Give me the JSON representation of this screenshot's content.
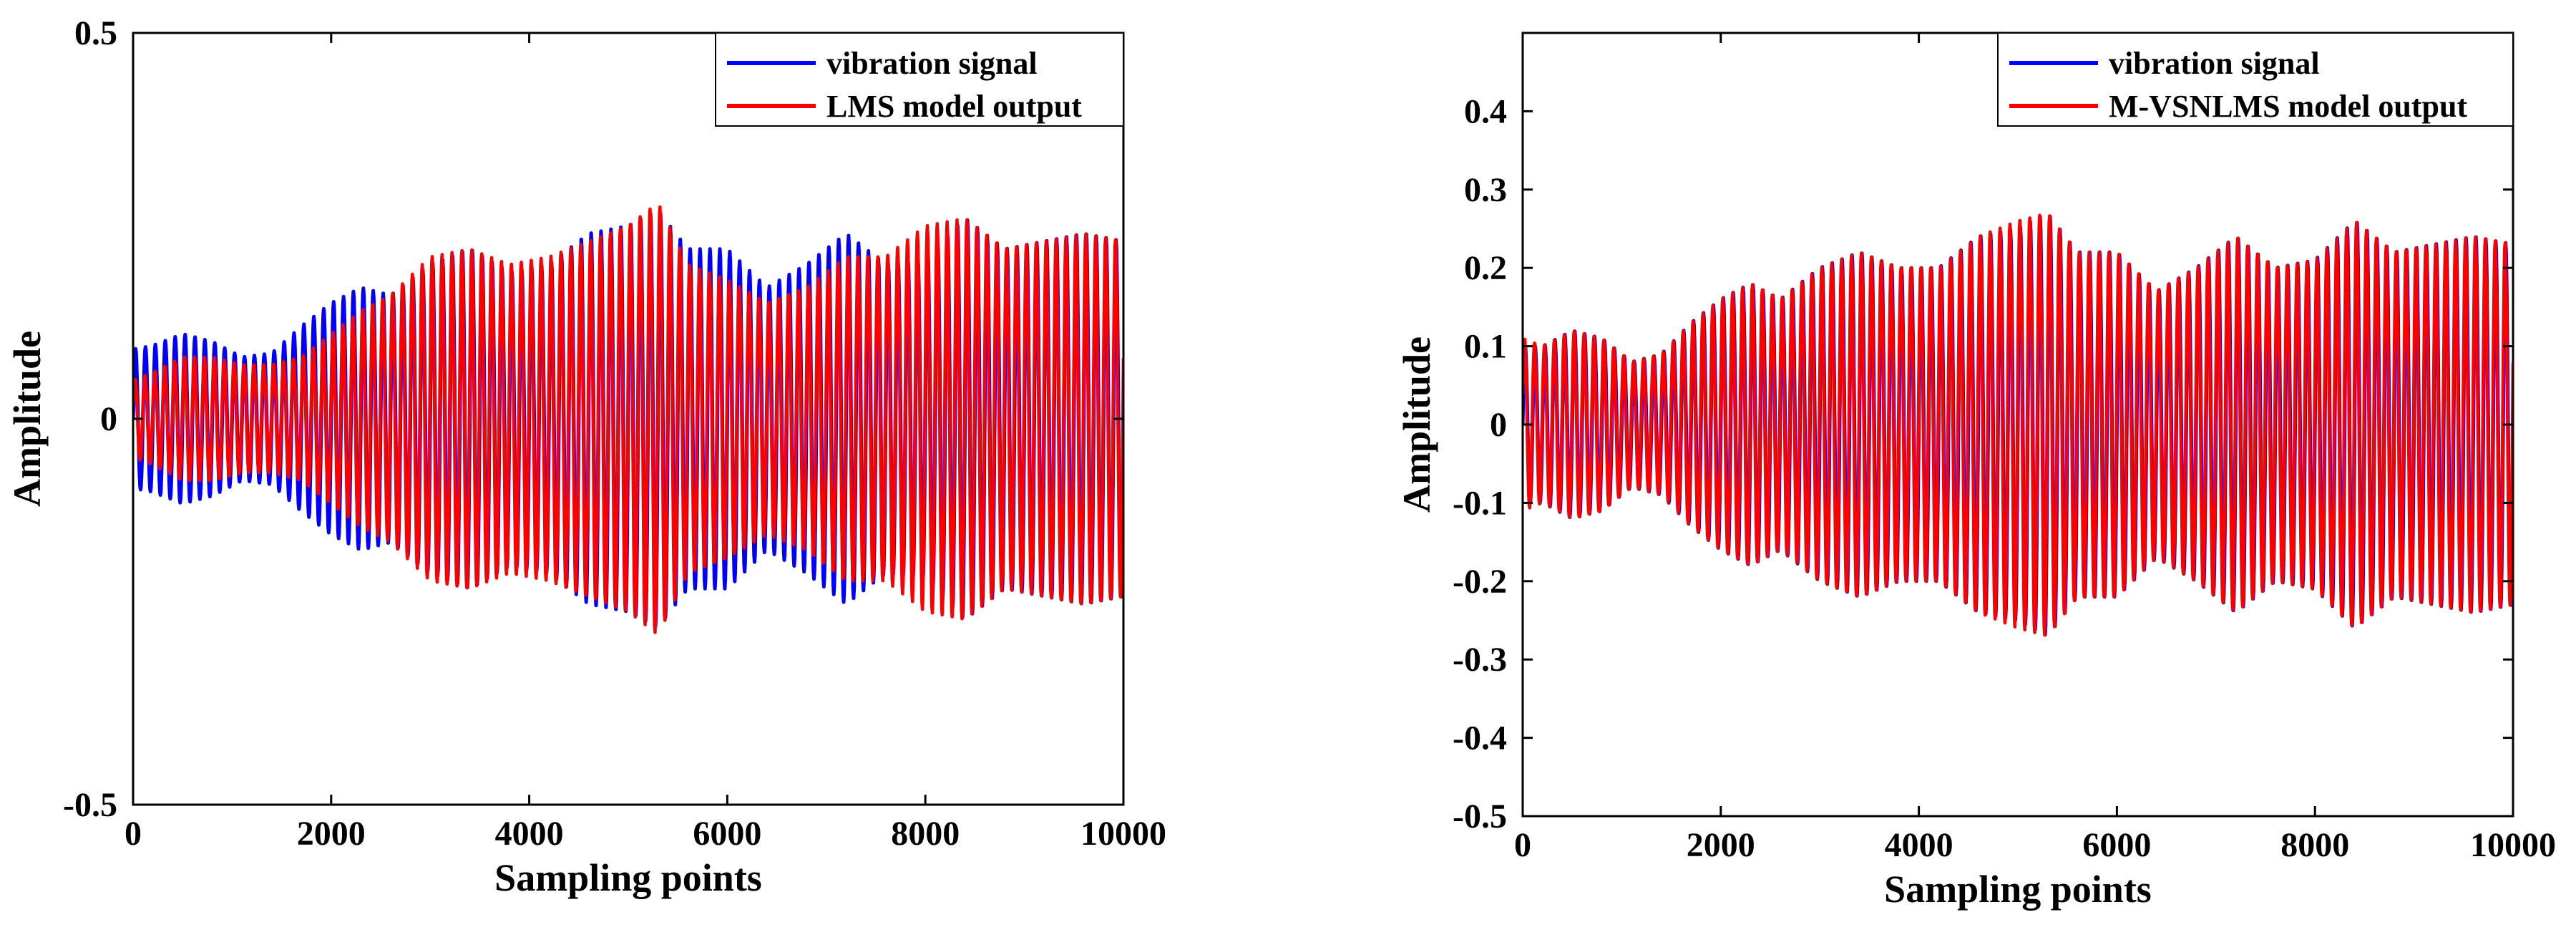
{
  "colors": {
    "signal": "#0000ff",
    "model": "#ff0000",
    "axis": "#000000",
    "background": "#ffffff"
  },
  "chart_data": [
    {
      "type": "line",
      "title": "",
      "xlabel": "Sampling points",
      "ylabel": "Amplitude",
      "xlim": [
        0,
        10000
      ],
      "ylim": [
        -0.5,
        0.5
      ],
      "xticks": [
        0,
        2000,
        4000,
        6000,
        8000,
        10000
      ],
      "yticks": [
        -0.5,
        0,
        0.5
      ],
      "xtick_labels": [
        "0",
        "2000",
        "4000",
        "6000",
        "8000",
        "10000"
      ],
      "ytick_labels": [
        "-0.5",
        "0",
        "0.5"
      ],
      "grid": false,
      "legend_position": "top-right",
      "oscillation_period": 100,
      "series": [
        {
          "name": "vibration signal",
          "color": "#0000ff",
          "envelope_x": [
            0,
            200,
            500,
            800,
            1100,
            1400,
            1700,
            2000,
            2300,
            2600,
            3000,
            3400,
            3800,
            4200,
            4600,
            5000,
            5300,
            5600,
            6000,
            6400,
            6800,
            7200,
            7600,
            8000,
            8400,
            8800,
            9200,
            9600,
            10000
          ],
          "envelope_y": [
            0.09,
            0.095,
            0.11,
            0.1,
            0.08,
            0.085,
            0.12,
            0.15,
            0.17,
            0.16,
            0.2,
            0.22,
            0.19,
            0.2,
            0.24,
            0.25,
            0.27,
            0.22,
            0.22,
            0.17,
            0.2,
            0.24,
            0.2,
            0.21,
            0.26,
            0.22,
            0.23,
            0.24,
            0.23
          ]
        },
        {
          "name": "LMS model output",
          "color": "#ff0000",
          "envelope_x": [
            0,
            200,
            500,
            800,
            1100,
            1400,
            1700,
            2000,
            2300,
            2600,
            3000,
            3400,
            3800,
            4200,
            4600,
            5000,
            5300,
            5600,
            6000,
            6400,
            6800,
            7200,
            7600,
            8000,
            8400,
            8800,
            9200,
            9600,
            10000
          ],
          "envelope_y": [
            0.05,
            0.06,
            0.08,
            0.08,
            0.07,
            0.07,
            0.08,
            0.11,
            0.14,
            0.16,
            0.21,
            0.22,
            0.2,
            0.21,
            0.23,
            0.25,
            0.28,
            0.2,
            0.18,
            0.15,
            0.17,
            0.21,
            0.21,
            0.25,
            0.26,
            0.22,
            0.23,
            0.24,
            0.23
          ]
        }
      ]
    },
    {
      "type": "line",
      "title": "",
      "xlabel": "Sampling points",
      "ylabel": "Amplitude",
      "xlim": [
        0,
        10000
      ],
      "ylim": [
        -0.5,
        0.5
      ],
      "xticks": [
        0,
        2000,
        4000,
        6000,
        8000,
        10000
      ],
      "yticks": [
        -0.5,
        -0.4,
        -0.3,
        -0.2,
        -0.1,
        0,
        0.1,
        0.2,
        0.3,
        0.4
      ],
      "xtick_labels": [
        "0",
        "2000",
        "4000",
        "6000",
        "8000",
        "10000"
      ],
      "ytick_labels": [
        "-0.5",
        "-0.4",
        "-0.3",
        "-0.2",
        "-0.1",
        "0",
        "0.1",
        "0.2",
        "0.3",
        "0.4"
      ],
      "grid": false,
      "legend_position": "top-right",
      "oscillation_period": 100,
      "series": [
        {
          "name": "vibration signal",
          "color": "#0000ff",
          "envelope_x": [
            0,
            200,
            500,
            800,
            1100,
            1400,
            1700,
            2000,
            2300,
            2600,
            3000,
            3400,
            3800,
            4200,
            4600,
            5000,
            5300,
            5600,
            6000,
            6400,
            6800,
            7200,
            7600,
            8000,
            8400,
            8800,
            9200,
            9600,
            10000
          ],
          "envelope_y": [
            0.1,
            0.1,
            0.12,
            0.11,
            0.08,
            0.09,
            0.13,
            0.16,
            0.18,
            0.16,
            0.2,
            0.22,
            0.2,
            0.2,
            0.24,
            0.25,
            0.27,
            0.22,
            0.22,
            0.17,
            0.2,
            0.24,
            0.2,
            0.21,
            0.26,
            0.22,
            0.23,
            0.24,
            0.23
          ]
        },
        {
          "name": "M-VSNLMS model output",
          "color": "#ff0000",
          "envelope_x": [
            0,
            200,
            500,
            800,
            1100,
            1400,
            1700,
            2000,
            2300,
            2600,
            3000,
            3400,
            3800,
            4200,
            4600,
            5000,
            5300,
            5600,
            6000,
            6400,
            6800,
            7200,
            7600,
            8000,
            8400,
            8800,
            9200,
            9600,
            10000
          ],
          "envelope_y": [
            0.11,
            0.1,
            0.12,
            0.11,
            0.08,
            0.09,
            0.13,
            0.16,
            0.18,
            0.16,
            0.2,
            0.22,
            0.2,
            0.2,
            0.24,
            0.26,
            0.27,
            0.22,
            0.22,
            0.17,
            0.2,
            0.24,
            0.2,
            0.21,
            0.26,
            0.22,
            0.23,
            0.24,
            0.23
          ]
        }
      ]
    }
  ]
}
